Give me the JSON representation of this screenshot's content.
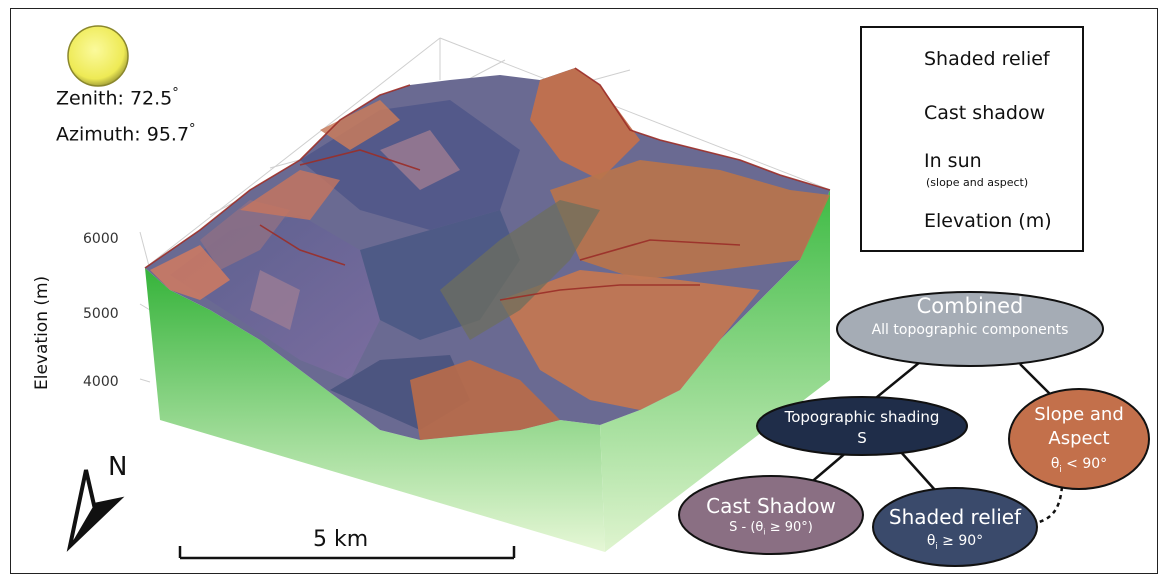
{
  "sun": {
    "zenith_text": "Zenith: 72.5",
    "azimuth_text": "Azimuth: 95.7",
    "degree_symbol": "°"
  },
  "axis": {
    "ylabel": "Elevation (m)",
    "ticks": [
      "6000",
      "5000",
      "4000"
    ]
  },
  "legend": {
    "items": [
      {
        "label": "Shaded relief",
        "sub": "",
        "color": "#3d4b6e"
      },
      {
        "label": "Cast shadow",
        "sub": "",
        "color": "#8b6f86"
      },
      {
        "label": "In sun",
        "sub": "(slope and aspect)",
        "color": "#c3714d"
      },
      {
        "label": "Elevation (m)",
        "sub": "",
        "color_top": "#e6f7d6",
        "color_bottom": "#35b33a"
      }
    ]
  },
  "tree": {
    "combined": {
      "title": "Combined",
      "subtitle": "All topographic components",
      "color": "#a5acb5"
    },
    "topo": {
      "title": "Topographic shading",
      "subtitle": "S",
      "color": "#1f2d49"
    },
    "slope": {
      "line1": "Slope and",
      "line2": "Aspect",
      "line3": "θ",
      "sub": "i",
      "line3b": " < 90°",
      "color": "#c3704b"
    },
    "cast": {
      "title": "Cast Shadow",
      "prefix": "S - (θ",
      "sub": "i",
      "suffix": " ≥ 90°)",
      "color": "#8a6f83"
    },
    "shaded": {
      "title": "Shaded relief",
      "prefix": "θ",
      "sub": "i",
      "suffix": " ≥ 90°",
      "color": "#3a4a6b"
    }
  },
  "scale": {
    "label": "5 km"
  },
  "north": {
    "label": "N"
  },
  "colors": {
    "sun_fill": "#f3f06a",
    "elevation_low": "#35b33a",
    "elevation_high": "#e6f7d6"
  }
}
